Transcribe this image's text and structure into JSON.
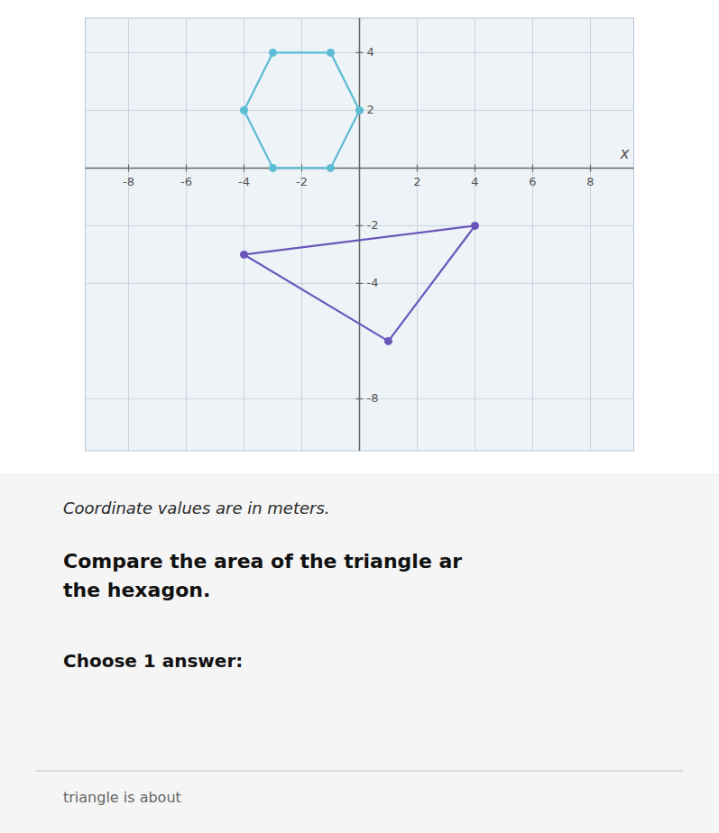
{
  "chart_data": {
    "type": "polygon",
    "x_label": "x",
    "xlim": [
      -9.5,
      9.5
    ],
    "ylim": [
      -9.8,
      5.2
    ],
    "xticks": [
      -8,
      -6,
      -4,
      -2,
      2,
      4,
      6,
      8
    ],
    "yticks": [
      -8,
      -4,
      -2,
      2,
      4
    ],
    "grid": true,
    "series": [
      {
        "x": [
          -3,
          -1,
          0,
          -1,
          -3,
          -4
        ],
        "values": [
          0,
          0,
          2,
          4,
          4,
          2
        ],
        "color": "#5bbcd4",
        "marker": "circle",
        "line_style": "solid"
      },
      {
        "x": [
          -4,
          4,
          1
        ],
        "values": [
          -3,
          -2,
          -6
        ],
        "color": "#6a55bb",
        "marker": "circle",
        "line_style": "solid"
      }
    ],
    "annotations": [
      "Coordinate values are in meters.",
      "Compare the area of the triangle ar\nthe hexagon.",
      "Choose 1 answer:",
      "triangle is about"
    ]
  }
}
